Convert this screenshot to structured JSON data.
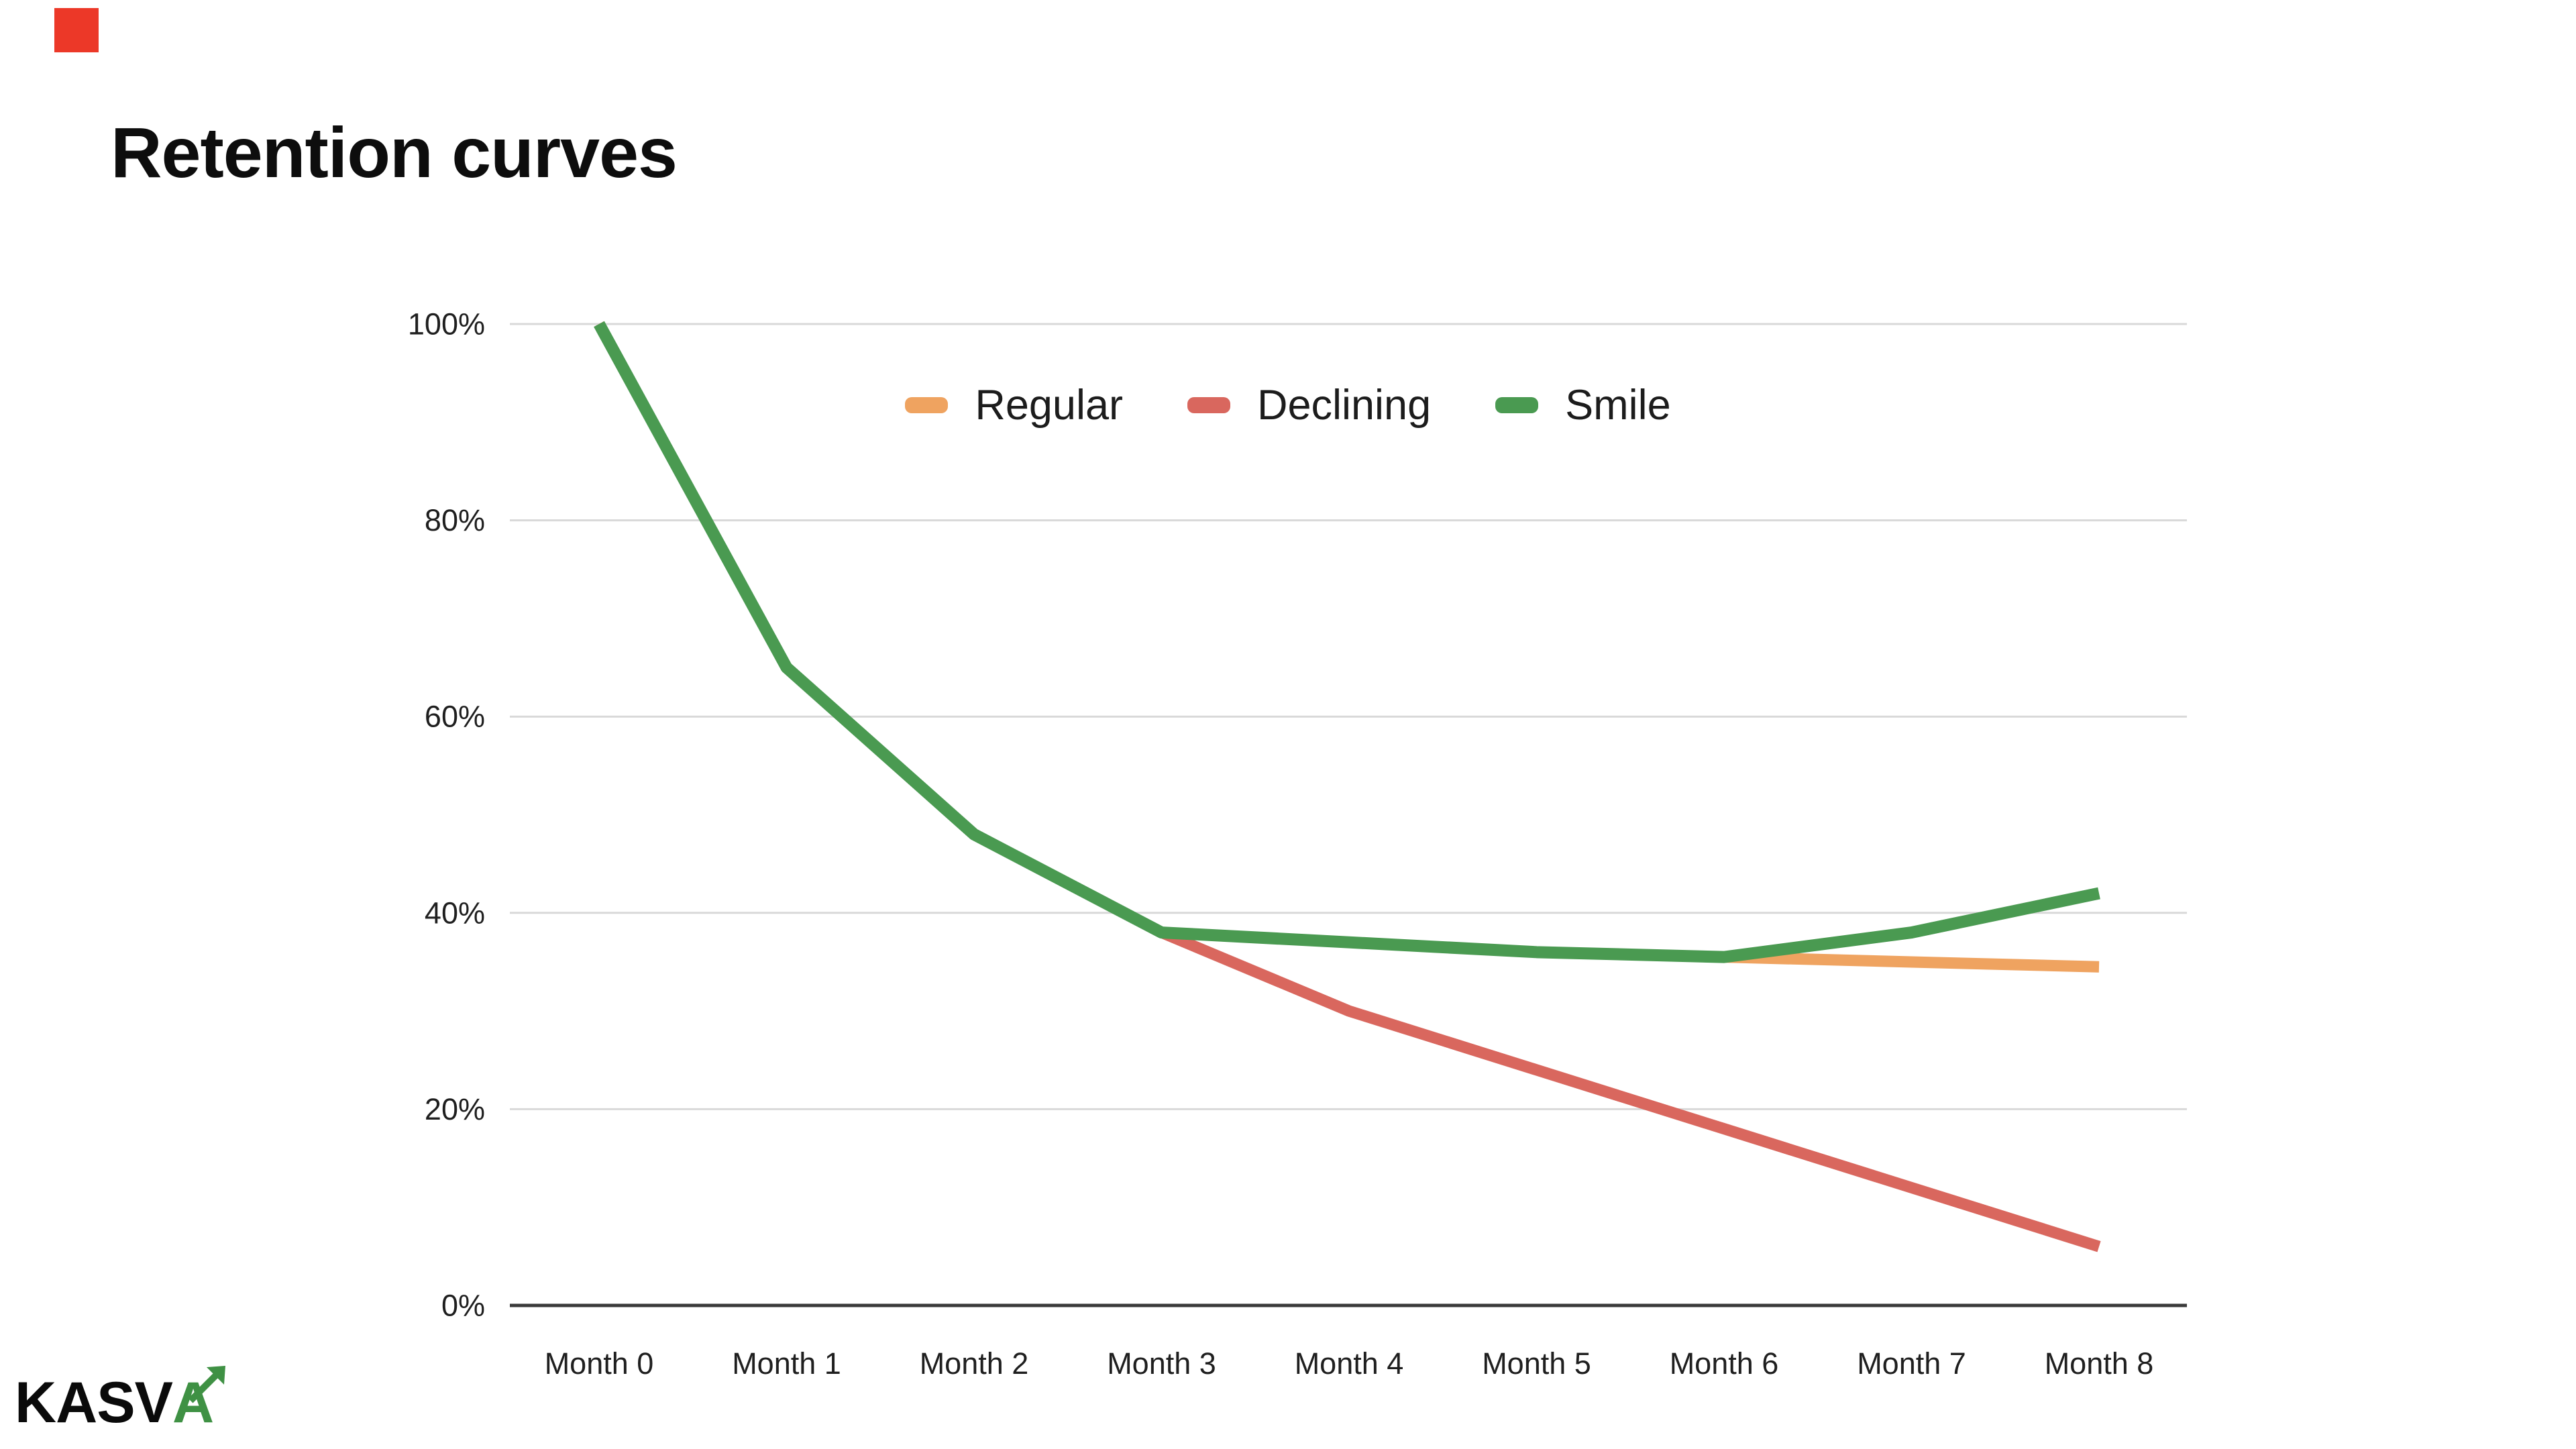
{
  "decor": {
    "red_square_color": "#ec3828"
  },
  "header": {
    "title": "Retention curves"
  },
  "logo": {
    "text_black": "KASV",
    "text_green": "A",
    "green_color": "#3f9144"
  },
  "chart_data": {
    "type": "line",
    "title": "Retention curves",
    "xlabel": "",
    "ylabel": "",
    "ylim": [
      0,
      100
    ],
    "grid": true,
    "legend_position": "top-center",
    "categories": [
      "Month 0",
      "Month 1",
      "Month 2",
      "Month 3",
      "Month 4",
      "Month 5",
      "Month 6",
      "Month 7",
      "Month 8"
    ],
    "y_ticks": [
      "100%",
      "80%",
      "60%",
      "40%",
      "20%",
      "0%"
    ],
    "y_tick_values": [
      100,
      80,
      60,
      40,
      20,
      0
    ],
    "series": [
      {
        "name": "Regular",
        "color": "#EFA360",
        "values": [
          100,
          65,
          48,
          38,
          37,
          36,
          35.5,
          35,
          34.5
        ]
      },
      {
        "name": "Declining",
        "color": "#D9675E",
        "values": [
          100,
          65,
          48,
          38,
          30,
          24,
          18,
          12,
          6
        ]
      },
      {
        "name": "Smile",
        "color": "#4A9A51",
        "values": [
          100,
          65,
          48,
          38,
          37,
          36,
          35.5,
          38,
          42
        ]
      }
    ],
    "colors": {
      "grid": "#d9d9d9",
      "axis": "#3a3a3a",
      "tick_text": "#1f1f1f"
    }
  }
}
